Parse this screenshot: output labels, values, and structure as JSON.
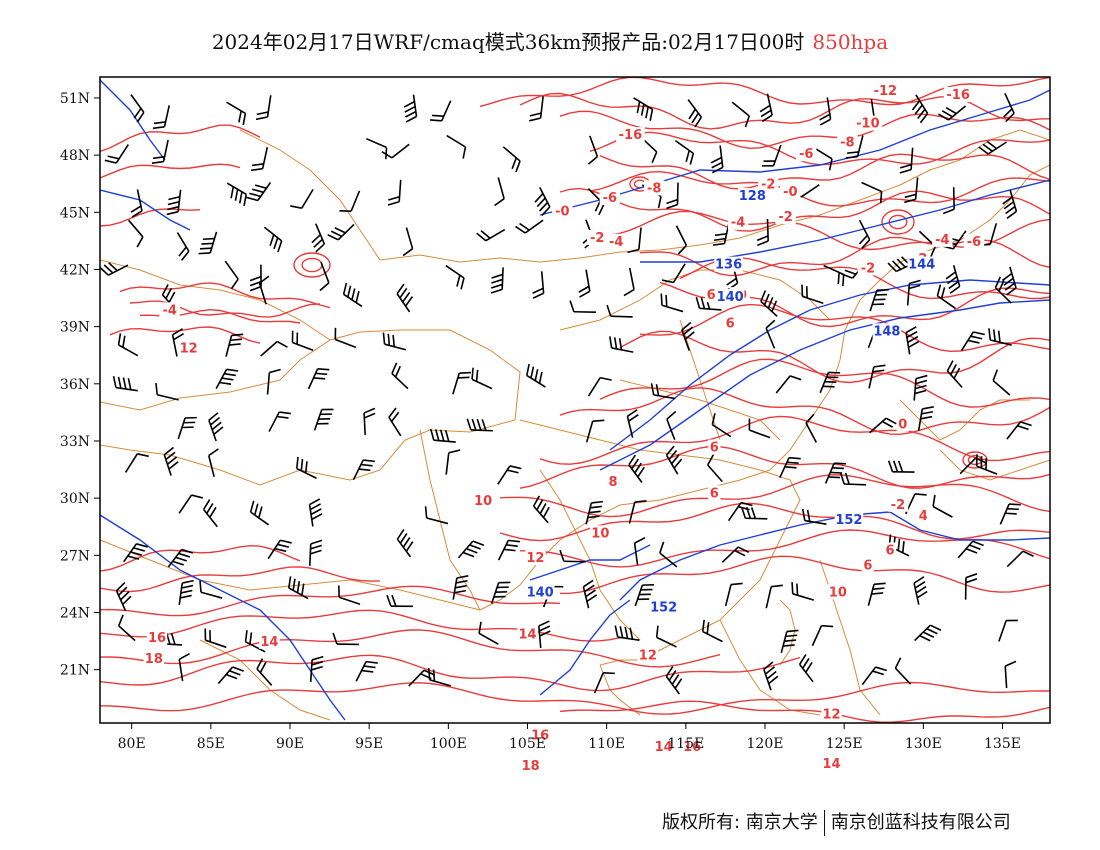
{
  "title": {
    "main": "2024年02月17日WRF/cmaq模式36km预报产品:02月17日00时",
    "level": "850hpa",
    "level_color": "#e83c3c"
  },
  "colors": {
    "temperature": "#e83c3c",
    "geopotential": "#1f3fd6",
    "boundary": "#d98b3a",
    "wind": "#000000"
  },
  "axes": {
    "lon_labels": [
      "80E",
      "85E",
      "90E",
      "95E",
      "100E",
      "105E",
      "110E",
      "115E",
      "120E",
      "125E",
      "130E",
      "135E"
    ],
    "lat_labels": [
      "51N",
      "48N",
      "45N",
      "42N",
      "39N",
      "36N",
      "33N",
      "30N",
      "27N",
      "24N",
      "21N"
    ]
  },
  "temperature_labels": [
    {
      "text": "-16",
      "lon": 111.5,
      "lat": 49.0
    },
    {
      "text": "-12",
      "lon": 127.6,
      "lat": 51.3
    },
    {
      "text": "-16",
      "lon": 132.2,
      "lat": 51.1
    },
    {
      "text": "-10",
      "lon": 126.5,
      "lat": 49.6
    },
    {
      "text": "-8",
      "lon": 125.2,
      "lat": 48.6
    },
    {
      "text": "-6",
      "lon": 122.6,
      "lat": 48.0
    },
    {
      "text": "-6",
      "lon": 110.2,
      "lat": 45.7
    },
    {
      "text": "-8",
      "lon": 113.0,
      "lat": 46.2
    },
    {
      "text": "-2",
      "lon": 120.2,
      "lat": 46.4
    },
    {
      "text": "-0",
      "lon": 121.6,
      "lat": 46.0
    },
    {
      "text": "-0",
      "lon": 107.2,
      "lat": 45.0
    },
    {
      "text": "-2",
      "lon": 121.3,
      "lat": 44.7
    },
    {
      "text": "-4",
      "lon": 118.3,
      "lat": 44.4
    },
    {
      "text": "-4",
      "lon": 110.6,
      "lat": 43.4
    },
    {
      "text": "-2",
      "lon": 109.4,
      "lat": 43.6
    },
    {
      "text": "-4",
      "lon": 131.2,
      "lat": 43.5
    },
    {
      "text": "-6",
      "lon": 133.2,
      "lat": 43.4
    },
    {
      "text": "-2",
      "lon": 129.8,
      "lat": 42.5
    },
    {
      "text": "-2",
      "lon": 126.5,
      "lat": 42.0
    },
    {
      "text": "-0",
      "lon": 118.4,
      "lat": 40.6
    },
    {
      "text": "6",
      "lon": 116.6,
      "lat": 40.6
    },
    {
      "text": "6",
      "lon": 117.8,
      "lat": 39.1
    },
    {
      "text": "-4",
      "lon": 82.4,
      "lat": 39.8
    },
    {
      "text": "12",
      "lon": 83.6,
      "lat": 37.8
    },
    {
      "text": "0",
      "lon": 128.7,
      "lat": 33.8
    },
    {
      "text": "6",
      "lon": 116.8,
      "lat": 32.6
    },
    {
      "text": "8",
      "lon": 110.4,
      "lat": 30.8
    },
    {
      "text": "6",
      "lon": 116.8,
      "lat": 30.2
    },
    {
      "text": "10",
      "lon": 102.2,
      "lat": 29.8
    },
    {
      "text": "4",
      "lon": 130.0,
      "lat": 29.0
    },
    {
      "text": "-2",
      "lon": 128.4,
      "lat": 29.6
    },
    {
      "text": "10",
      "lon": 109.6,
      "lat": 28.1
    },
    {
      "text": "12",
      "lon": 105.5,
      "lat": 26.8
    },
    {
      "text": "6",
      "lon": 127.9,
      "lat": 27.2
    },
    {
      "text": "6",
      "lon": 126.5,
      "lat": 26.4
    },
    {
      "text": "10",
      "lon": 124.6,
      "lat": 25.0
    },
    {
      "text": "14",
      "lon": 105.0,
      "lat": 22.8
    },
    {
      "text": "12",
      "lon": 112.6,
      "lat": 21.7
    },
    {
      "text": "16",
      "lon": 81.6,
      "lat": 22.6
    },
    {
      "text": "18",
      "lon": 81.4,
      "lat": 21.5
    },
    {
      "text": "14",
      "lon": 88.7,
      "lat": 22.4
    },
    {
      "text": "12",
      "lon": 124.2,
      "lat": 18.6
    },
    {
      "text": "16",
      "lon": 105.8,
      "lat": 17.5
    },
    {
      "text": "14",
      "lon": 113.6,
      "lat": 16.9
    },
    {
      "text": "16",
      "lon": 115.4,
      "lat": 16.9
    },
    {
      "text": "18",
      "lon": 105.2,
      "lat": 15.9
    },
    {
      "text": "14",
      "lon": 124.2,
      "lat": 16.0
    }
  ],
  "geopotential_labels": [
    {
      "text": "128",
      "lon": 119.2,
      "lat": 45.8
    },
    {
      "text": "136",
      "lon": 117.7,
      "lat": 42.2
    },
    {
      "text": "140",
      "lon": 117.8,
      "lat": 40.5
    },
    {
      "text": "144",
      "lon": 129.9,
      "lat": 42.2
    },
    {
      "text": "148",
      "lon": 127.7,
      "lat": 38.7
    },
    {
      "text": "152",
      "lon": 125.3,
      "lat": 28.8
    },
    {
      "text": "140",
      "lon": 105.8,
      "lat": 25.0
    },
    {
      "text": "152",
      "lon": 113.6,
      "lat": 24.2
    }
  ],
  "footer": {
    "copyright": "版权所有: 南京大学",
    "company": "南京创蓝科技有限公司"
  }
}
